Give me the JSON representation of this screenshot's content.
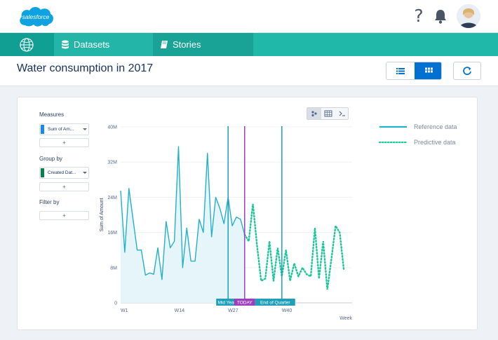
{
  "topbar": {
    "logo_text": "salesforce",
    "help_glyph": "?",
    "icons": [
      "salesforce-cloud-logo",
      "help-icon",
      "bell-icon",
      "avatar"
    ]
  },
  "nav": {
    "home_icon": "globe-icon",
    "tabs": [
      {
        "label": "Datasets",
        "icon": "database-icon"
      },
      {
        "label": "Stories",
        "icon": "book-icon"
      }
    ]
  },
  "header": {
    "title": "Water consumption in 2017",
    "buttons": [
      "list-view-icon",
      "grid-view-icon",
      "refresh-icon"
    ]
  },
  "sidebar": {
    "measures_label": "Measures",
    "measure_pill": "Sum of Am...",
    "group_label": "Group by",
    "group_pill": "Created Dat...",
    "filter_label": "Filter by",
    "add_label": "+"
  },
  "chart_data": {
    "type": "line",
    "xlabel": "Week",
    "ylabel": "Sum of Amount",
    "ylim": [
      0,
      40
    ],
    "y_ticks": [
      "0",
      "8M",
      "16M",
      "24M",
      "32M",
      "40M"
    ],
    "x_ticks": [
      "W1",
      "W14",
      "W27",
      "W40"
    ],
    "series": [
      {
        "name": "Reference data",
        "x": [
          1,
          2,
          3,
          4,
          5,
          6,
          7,
          8,
          9,
          10,
          11,
          12,
          13,
          14,
          15,
          16,
          17,
          18,
          19,
          20,
          21,
          22,
          23,
          24,
          25,
          26,
          27,
          28,
          29,
          30,
          31
        ],
        "values": [
          25.5,
          11.5,
          26,
          19,
          12,
          12,
          6.3,
          6.8,
          6.5,
          12.5,
          5.3,
          18.5,
          12.5,
          14,
          35.5,
          8,
          17,
          9.5,
          9.5,
          19,
          16,
          34,
          15,
          24,
          21.5,
          18,
          24,
          17.5,
          19.5,
          19,
          15.5
        ]
      },
      {
        "name": "Predictive data",
        "x": [
          31,
          32,
          33,
          34,
          35,
          36,
          37,
          38,
          39,
          40,
          41,
          42,
          43,
          44,
          45,
          46,
          47,
          48,
          49,
          50,
          51,
          52,
          53,
          54,
          55
        ],
        "values": [
          15.5,
          14,
          22.5,
          13,
          5,
          5.5,
          14,
          5,
          12.5,
          6,
          12,
          5,
          9,
          6,
          8,
          6.5,
          6,
          17,
          5.5,
          14,
          3,
          10,
          17.5,
          16,
          7.5
        ]
      }
    ],
    "markers": [
      {
        "label": "Mid Year",
        "x": 27
      },
      {
        "label": "TODAY",
        "x": 31
      },
      {
        "label": "End of Quarter",
        "x": 40
      }
    ],
    "legend_position": "top-right",
    "colors": {
      "reference": "#23b1c9",
      "predictive": "#1bc79a",
      "today": "#9c3fbf",
      "marker": "#1f9fb8"
    }
  }
}
